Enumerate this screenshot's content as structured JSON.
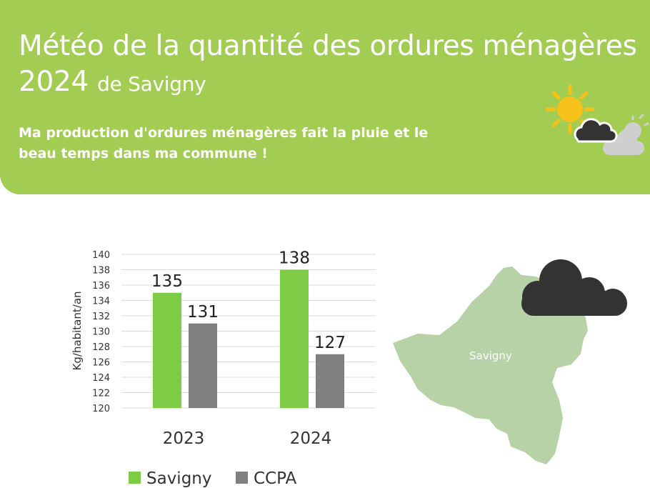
{
  "header": {
    "title_line1": "Météo de la quantité des ordures ménagères",
    "title_year": "2024",
    "title_suffix": "de Savigny",
    "subtitle_line1": "Ma production d'ordures ménagères fait la pluie et le",
    "subtitle_line2": "beau temps dans ma commune !",
    "header_color": "#a3cc52",
    "weather_icon": "sun-behind-clouds-icon"
  },
  "map": {
    "commune_label": "Savigny",
    "map_color": "#b6d2a6",
    "weather_icon": "dark-cloud-icon",
    "cloud_color": "#333333"
  },
  "chart_data": {
    "type": "bar",
    "categories": [
      "2023",
      "2024"
    ],
    "series": [
      {
        "name": "Savigny",
        "values": [
          135,
          138
        ],
        "color": "#7ecb45"
      },
      {
        "name": "CCPA",
        "values": [
          131,
          127
        ],
        "color": "#808080"
      }
    ],
    "ylabel": "Kg/habitant/an",
    "ylim": [
      120,
      140
    ],
    "yticks": [
      "120",
      "122",
      "124",
      "126",
      "128",
      "130",
      "132",
      "134",
      "136",
      "138",
      "140"
    ],
    "grid": true,
    "legend": "bottom",
    "data_labels": [
      "135",
      "131",
      "138",
      "127"
    ]
  }
}
